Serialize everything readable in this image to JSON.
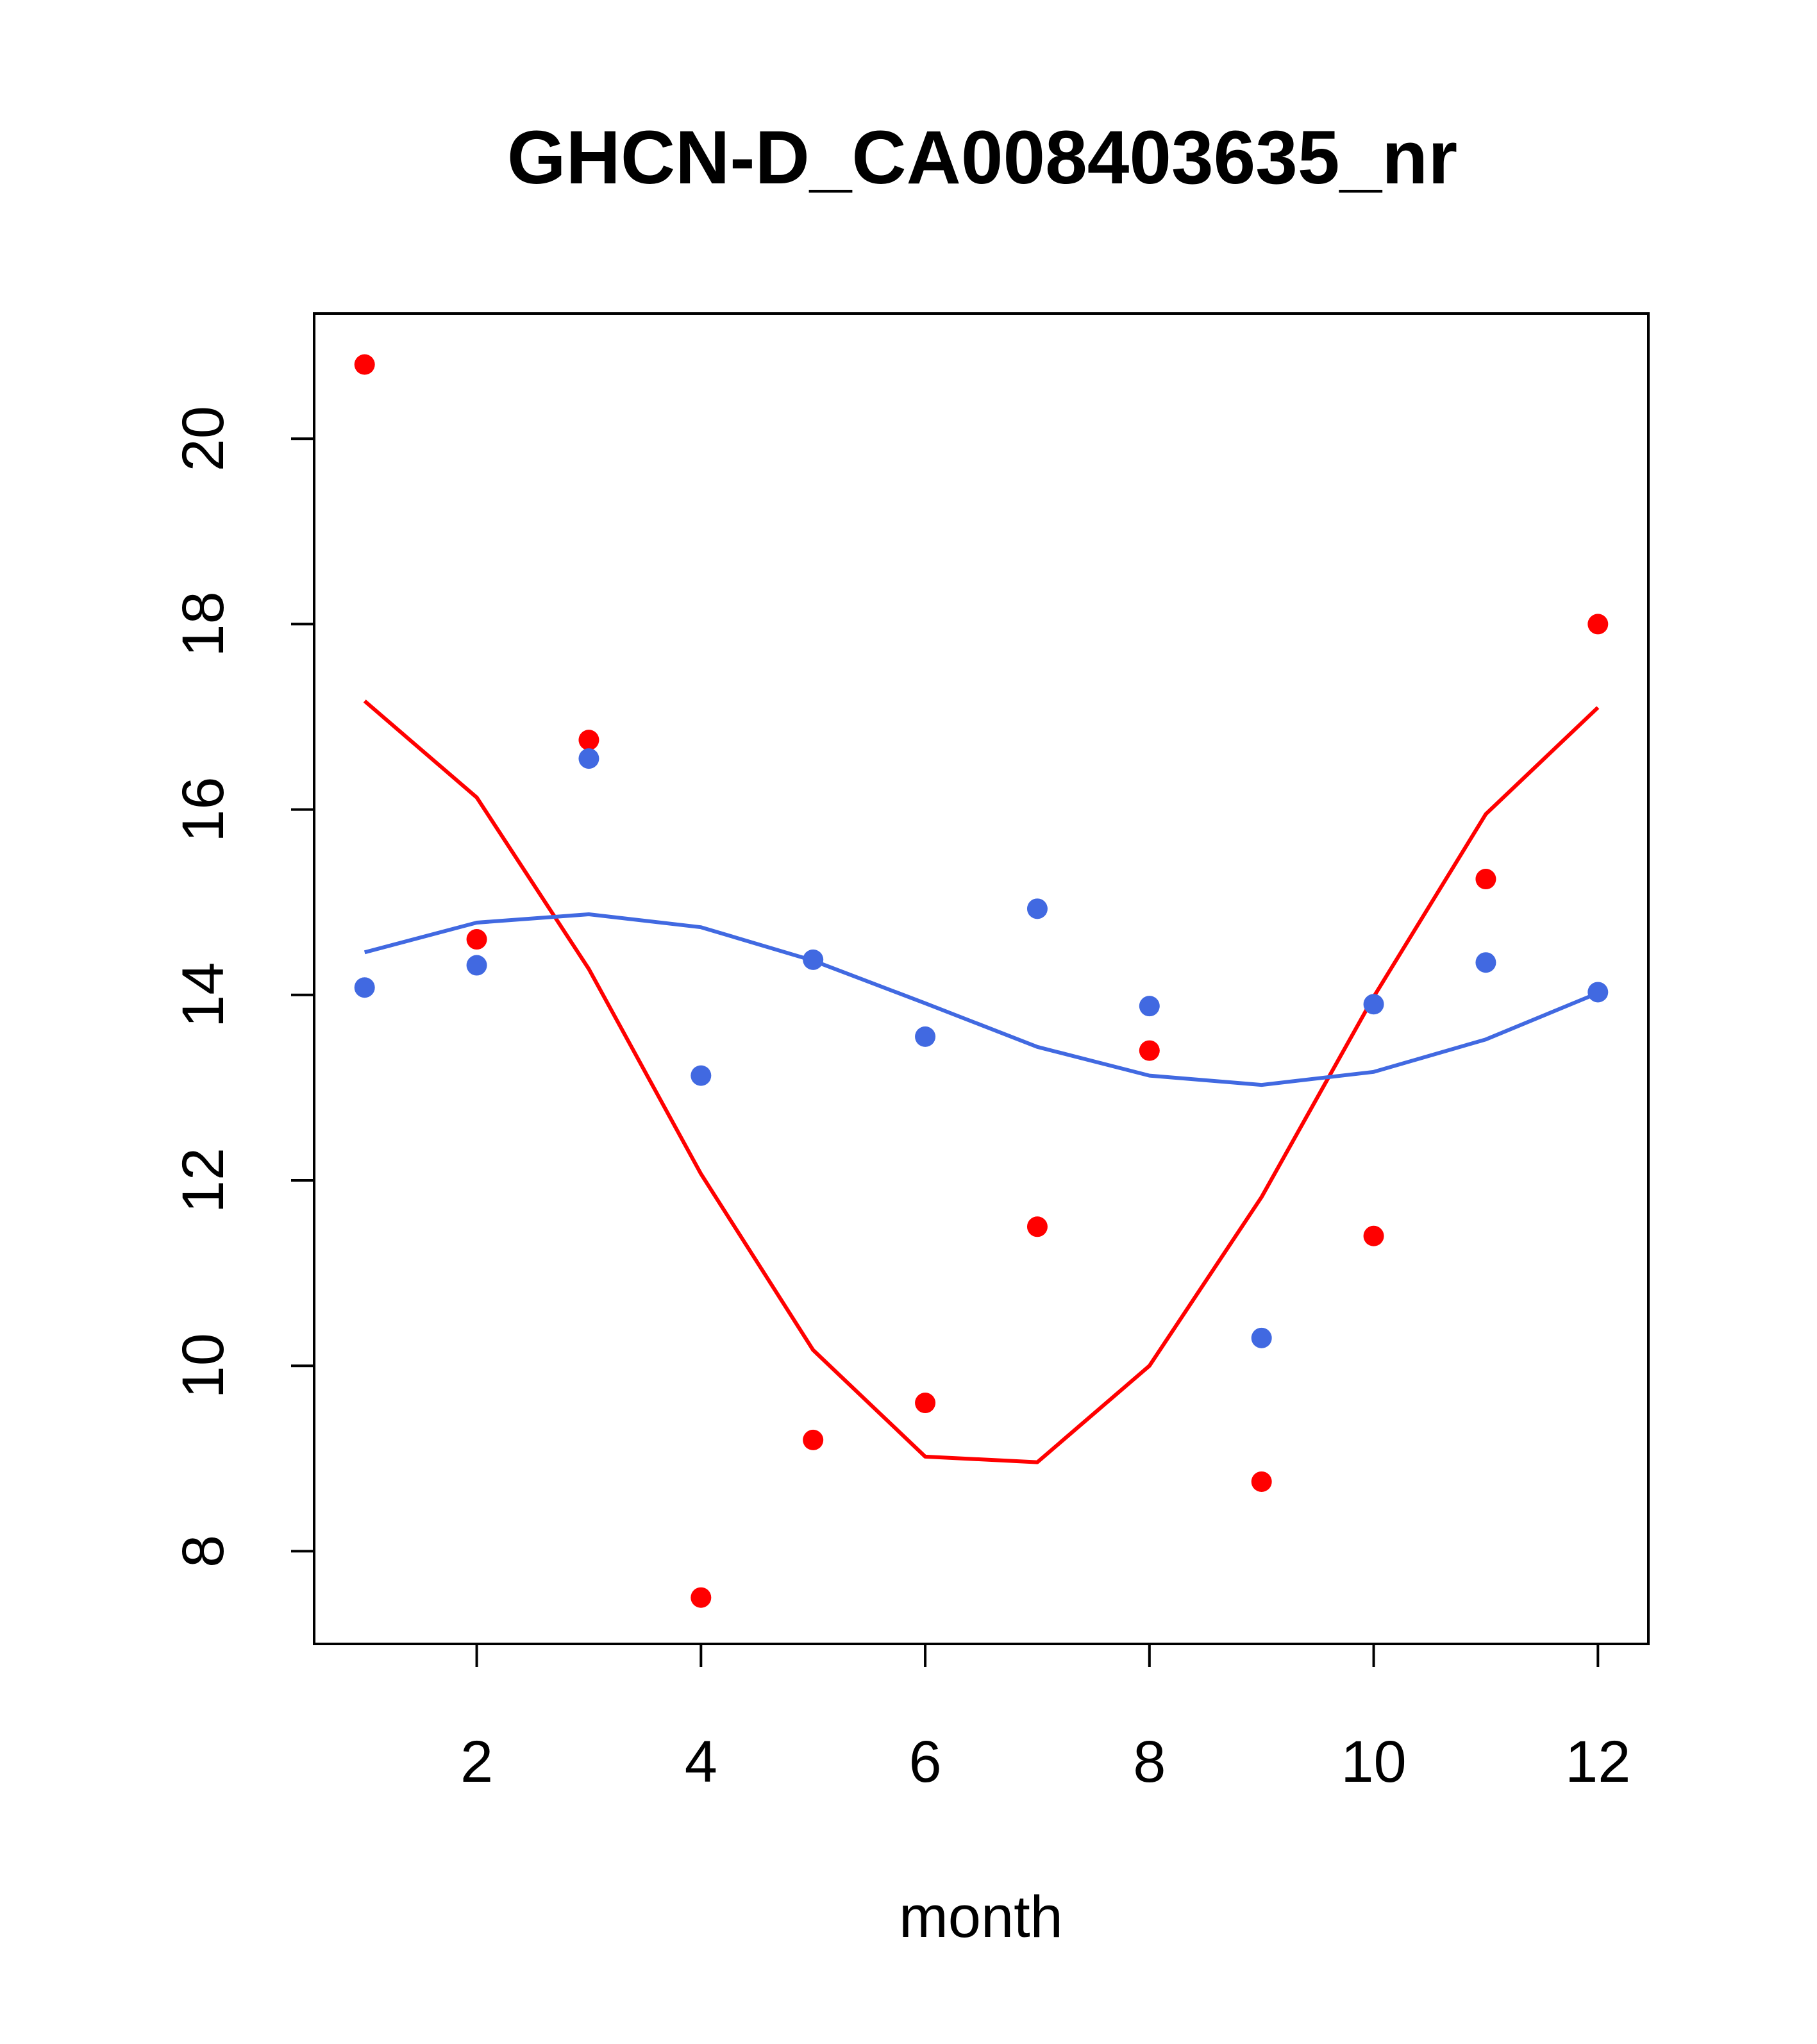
{
  "chart_data": {
    "type": "scatter",
    "title": "GHCN-D_CA008403635_nr",
    "xlabel": "month",
    "ylabel": "",
    "xlim": [
      0.55,
      12.45
    ],
    "ylim": [
      7.0,
      21.35
    ],
    "xticks": [
      2,
      4,
      6,
      8,
      10,
      12
    ],
    "yticks": [
      8,
      10,
      12,
      14,
      16,
      18,
      20
    ],
    "x": [
      1,
      2,
      3,
      4,
      5,
      6,
      7,
      8,
      9,
      10,
      11,
      12
    ],
    "series": [
      {
        "color": "#ff0000",
        "points": [
          20.8,
          14.6,
          16.75,
          7.5,
          9.2,
          9.6,
          11.5,
          13.4,
          8.75,
          11.4,
          15.25,
          18.0
        ],
        "smooth": [
          17.17,
          16.13,
          14.28,
          12.07,
          10.17,
          9.02,
          8.96,
          10.0,
          11.82,
          13.98,
          15.95,
          17.1
        ]
      },
      {
        "color": "#4169e1",
        "points": [
          14.08,
          14.32,
          16.55,
          13.13,
          14.38,
          13.55,
          14.93,
          13.88,
          10.3,
          13.9,
          14.35,
          14.03
        ],
        "smooth": [
          14.46,
          14.78,
          14.87,
          14.73,
          14.37,
          13.91,
          13.44,
          13.13,
          13.03,
          13.17,
          13.52,
          14.02
        ]
      }
    ],
    "grid": false,
    "legend": "none"
  }
}
